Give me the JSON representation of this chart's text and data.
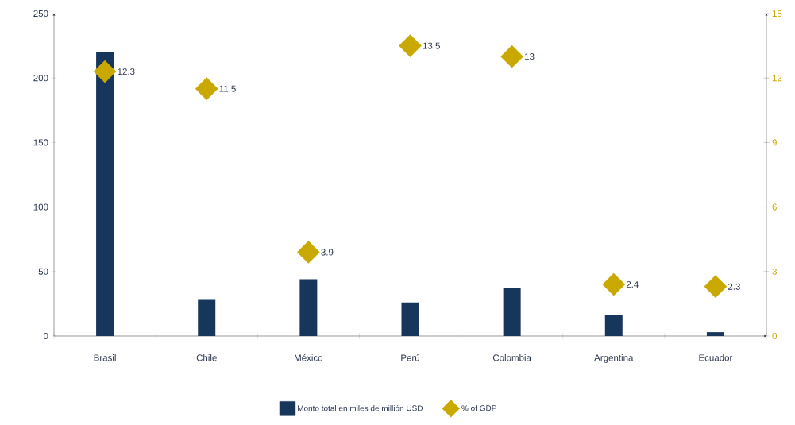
{
  "chart_data": {
    "type": "bar",
    "categories": [
      "Brasil",
      "Chile",
      "México",
      "Perú",
      "Colombia",
      "Argentina",
      "Ecuador"
    ],
    "series": [
      {
        "name": "Monto total en miles de millión USD",
        "color": "#16365c",
        "values": [
          220,
          28,
          44,
          26,
          37,
          16,
          3
        ]
      },
      {
        "name": "% of GDP",
        "type": "scatter",
        "axis": "y2",
        "color": "#c9a800",
        "marker": "diamond",
        "values": [
          12.3,
          11.5,
          3.9,
          13.5,
          13,
          2.4,
          2.3
        ],
        "value_labels": [
          "12.3",
          "11.5",
          "3.9",
          "13.5",
          "13",
          "2.4",
          "2.3"
        ]
      }
    ],
    "ylim": [
      0,
      250
    ],
    "yticks": [
      0,
      50,
      100,
      150,
      200,
      250
    ],
    "y2lim": [
      0,
      15
    ],
    "y2ticks": [
      0,
      3,
      6,
      9,
      12,
      15
    ],
    "legend": "bottom"
  }
}
